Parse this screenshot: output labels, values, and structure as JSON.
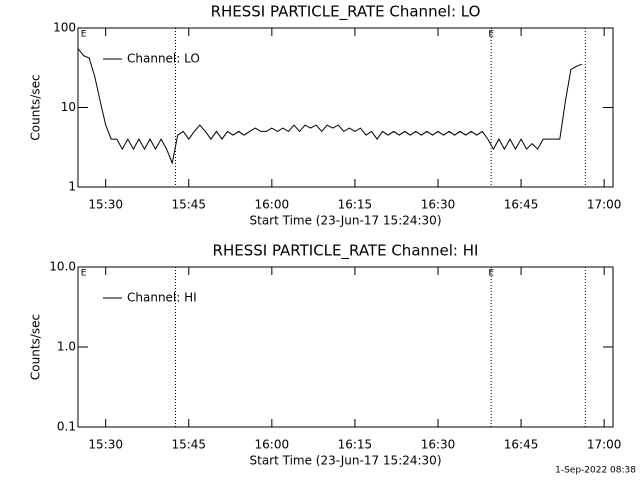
{
  "chart_data": [
    {
      "type": "line",
      "title": "RHESSI PARTICLE_RATE Channel: LO",
      "xlabel": "Start Time (23-Jun-17 15:24:30)",
      "ylabel": "Counts/sec",
      "x": [
        25,
        26,
        27,
        28,
        29,
        30,
        31,
        32,
        33,
        34,
        35,
        36,
        37,
        38,
        39,
        40,
        41,
        42,
        43,
        44,
        45,
        46,
        47,
        48,
        49,
        50,
        51,
        52,
        53,
        54,
        55,
        56,
        57,
        58,
        59,
        60,
        61,
        62,
        63,
        64,
        65,
        66,
        67,
        68,
        69,
        70,
        71,
        72,
        73,
        74,
        75,
        76,
        77,
        78,
        79,
        80,
        81,
        82,
        83,
        84,
        85,
        86,
        87,
        88,
        89,
        90,
        91,
        92,
        93,
        94,
        95,
        96,
        97,
        98,
        99,
        100,
        101,
        102,
        103,
        104,
        105,
        106,
        107,
        108,
        109,
        110,
        111,
        112,
        113,
        114,
        115,
        116
      ],
      "series": [
        {
          "name": "Channel: LO",
          "color": "#000000",
          "values": [
            55,
            45,
            42,
            25,
            12,
            6,
            4,
            4,
            3,
            4,
            3,
            4,
            3,
            4,
            3,
            4,
            3,
            2,
            4.5,
            5,
            4,
            5,
            6,
            5,
            4,
            5,
            4,
            5,
            4.5,
            5,
            4.5,
            5,
            5.5,
            5,
            5,
            5.5,
            5,
            5.5,
            5,
            6,
            5,
            6,
            5.5,
            6,
            5,
            6,
            5.5,
            6,
            5,
            5.5,
            5,
            5.5,
            4.5,
            5,
            4,
            5,
            4.5,
            5,
            4.5,
            5,
            4.5,
            5,
            4.5,
            5,
            4.5,
            5,
            4.5,
            5,
            4.5,
            5,
            4.5,
            5,
            4.5,
            5,
            4,
            3,
            4,
            3,
            4,
            3,
            4,
            3,
            3.5,
            3,
            4,
            4,
            4,
            4,
            12,
            30,
            33,
            35
          ]
        }
      ],
      "xlim": [
        25,
        121.6
      ],
      "xticks": [
        {
          "value": 30,
          "label": "15:30"
        },
        {
          "value": 45,
          "label": "15:45"
        },
        {
          "value": 60,
          "label": "16:00"
        },
        {
          "value": 75,
          "label": "16:15"
        },
        {
          "value": 90,
          "label": "16:30"
        },
        {
          "value": 105,
          "label": "16:45"
        },
        {
          "value": 120,
          "label": "17:00"
        }
      ],
      "ylim": [
        1,
        100
      ],
      "yticks": [
        1,
        10,
        100
      ],
      "log_y": true,
      "vlines": [
        42.6,
        99.6,
        116.6
      ],
      "events": [
        {
          "x": 26,
          "label": "E"
        },
        {
          "x": 99.6,
          "label": "E"
        }
      ]
    },
    {
      "type": "line",
      "title": "RHESSI PARTICLE_RATE Channel: HI",
      "xlabel": "Start Time (23-Jun-17 15:24:30)",
      "ylabel": "Counts/sec",
      "x": [],
      "series": [
        {
          "name": "Channel: HI",
          "color": "#000000",
          "values": []
        }
      ],
      "xlim": [
        25,
        121.6
      ],
      "xticks": [
        {
          "value": 30,
          "label": "15:30"
        },
        {
          "value": 45,
          "label": "15:45"
        },
        {
          "value": 60,
          "label": "16:00"
        },
        {
          "value": 75,
          "label": "16:15"
        },
        {
          "value": 90,
          "label": "16:30"
        },
        {
          "value": 105,
          "label": "16:45"
        },
        {
          "value": 120,
          "label": "17:00"
        }
      ],
      "ylim": [
        0.1,
        10
      ],
      "yticks": [
        {
          "value": 0.1,
          "label": "0.1"
        },
        {
          "value": 1,
          "label": "1.0"
        },
        {
          "value": 10,
          "label": "10.0"
        }
      ],
      "log_y": true,
      "vlines": [
        42.6,
        99.6,
        116.6
      ],
      "events": [
        {
          "x": 26,
          "label": "E"
        },
        {
          "x": 99.6,
          "label": "E"
        }
      ]
    }
  ],
  "footer": "1-Sep-2022 08:38"
}
